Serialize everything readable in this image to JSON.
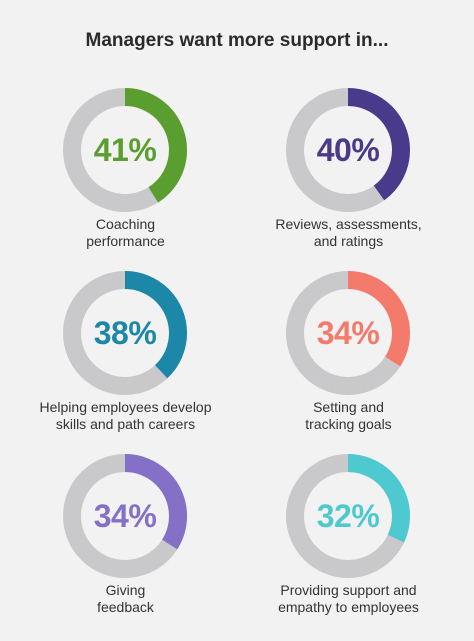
{
  "title": "Managers want more support in...",
  "track_color": "#c9c9cc",
  "chart_data": {
    "type": "pie",
    "title": "Managers want more support in...",
    "items": [
      {
        "value": 41,
        "display": "41%",
        "label_lines": [
          "Coaching",
          "performance"
        ],
        "color": "#5a9e2f"
      },
      {
        "value": 40,
        "display": "40%",
        "label_lines": [
          "Reviews, assessments,",
          "and ratings"
        ],
        "color": "#4a3a8c"
      },
      {
        "value": 38,
        "display": "38%",
        "label_lines": [
          "Helping employees develop",
          "skills and path careers"
        ],
        "color": "#1c87a6"
      },
      {
        "value": 34,
        "display": "34%",
        "label_lines": [
          "Setting and",
          "tracking goals"
        ],
        "color": "#f47a6c"
      },
      {
        "value": 34,
        "display": "34%",
        "label_lines": [
          "Giving",
          "feedback"
        ],
        "color": "#8470c6"
      },
      {
        "value": 32,
        "display": "32%",
        "label_lines": [
          "Providing support and",
          "empathy to employees"
        ],
        "color": "#4fc9d0"
      }
    ]
  }
}
